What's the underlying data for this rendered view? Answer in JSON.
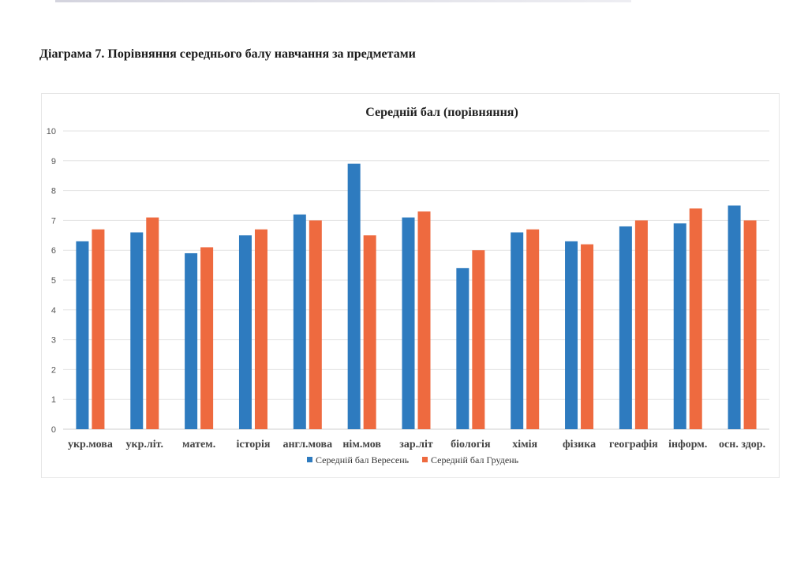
{
  "document": {
    "title": "Діаграма 7. Порівняння середнього балу навчання за предметами"
  },
  "colors": {
    "series1": "#2E7BBF",
    "series2": "#EE6A3F",
    "grid": "#e3e3e3"
  },
  "chart_data": {
    "type": "bar",
    "title": "Середній бал (порівняння)",
    "xlabel": "",
    "ylabel": "",
    "ylim": [
      0,
      10
    ],
    "yticks": [
      0,
      1,
      2,
      3,
      4,
      5,
      6,
      7,
      8,
      9,
      10
    ],
    "grid": true,
    "legend_position": "bottom",
    "categories": [
      "укр.мова",
      "укр.літ.",
      "матем.",
      "історія",
      "англ.мова",
      "нім.мов",
      "зар.літ",
      "біологія",
      "хімія",
      "фізика",
      "географія",
      "інформ.",
      "осн. здор."
    ],
    "series": [
      {
        "name": "Середній бал Вересень",
        "values": [
          6.3,
          6.6,
          5.9,
          6.5,
          7.2,
          8.9,
          7.1,
          5.4,
          6.6,
          6.3,
          6.8,
          6.9,
          7.5
        ]
      },
      {
        "name": "Середній бал Грудень",
        "values": [
          6.7,
          7.1,
          6.1,
          6.7,
          7.0,
          6.5,
          7.3,
          6.0,
          6.7,
          6.2,
          7.0,
          7.4,
          7.0
        ]
      }
    ]
  }
}
